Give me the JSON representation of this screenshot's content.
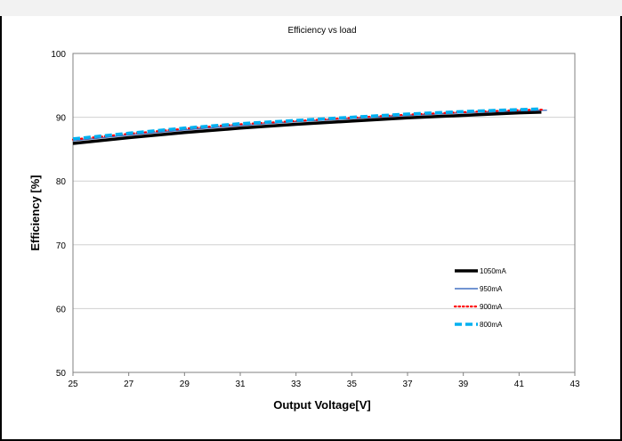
{
  "chart_data": {
    "type": "line",
    "title": "Efficiency vs load",
    "xlabel": "Output Voltage[V]",
    "ylabel": "Efficiency [%]",
    "xlim": [
      25,
      43
    ],
    "ylim": [
      50,
      100
    ],
    "xticks": [
      25,
      27,
      29,
      31,
      33,
      35,
      37,
      39,
      41,
      43
    ],
    "yticks": [
      50,
      60,
      70,
      80,
      90,
      100
    ],
    "grid": "horizontal",
    "legend_position": "right",
    "series": [
      {
        "name": "1050mA",
        "color": "#000000",
        "style": "solid-thick",
        "x": [
          25,
          27,
          29,
          31,
          33,
          35,
          37,
          39,
          41,
          41.8
        ],
        "y": [
          85.9,
          86.8,
          87.6,
          88.3,
          88.9,
          89.4,
          89.9,
          90.3,
          90.7,
          90.8
        ]
      },
      {
        "name": "950mA",
        "color": "#4472c4",
        "style": "solid",
        "x": [
          25,
          27,
          29,
          31,
          33,
          35,
          37,
          39,
          41,
          42
        ],
        "y": [
          86.3,
          87.2,
          88.0,
          88.7,
          89.3,
          89.8,
          90.3,
          90.7,
          91.0,
          91.1
        ]
      },
      {
        "name": "900mA",
        "color": "#ff0000",
        "style": "dotted",
        "x": [
          25,
          27,
          29,
          31,
          33,
          35,
          37,
          39,
          41,
          41.9
        ],
        "y": [
          86.5,
          87.4,
          88.2,
          88.9,
          89.4,
          89.9,
          90.4,
          90.8,
          91.1,
          91.2
        ]
      },
      {
        "name": "800mA",
        "color": "#00b0f0",
        "style": "dashed",
        "x": [
          25,
          27,
          29,
          31,
          33,
          35,
          37,
          39,
          41,
          41.8
        ],
        "y": [
          86.6,
          87.5,
          88.3,
          89.0,
          89.5,
          90.0,
          90.5,
          90.9,
          91.2,
          91.3
        ]
      }
    ]
  }
}
